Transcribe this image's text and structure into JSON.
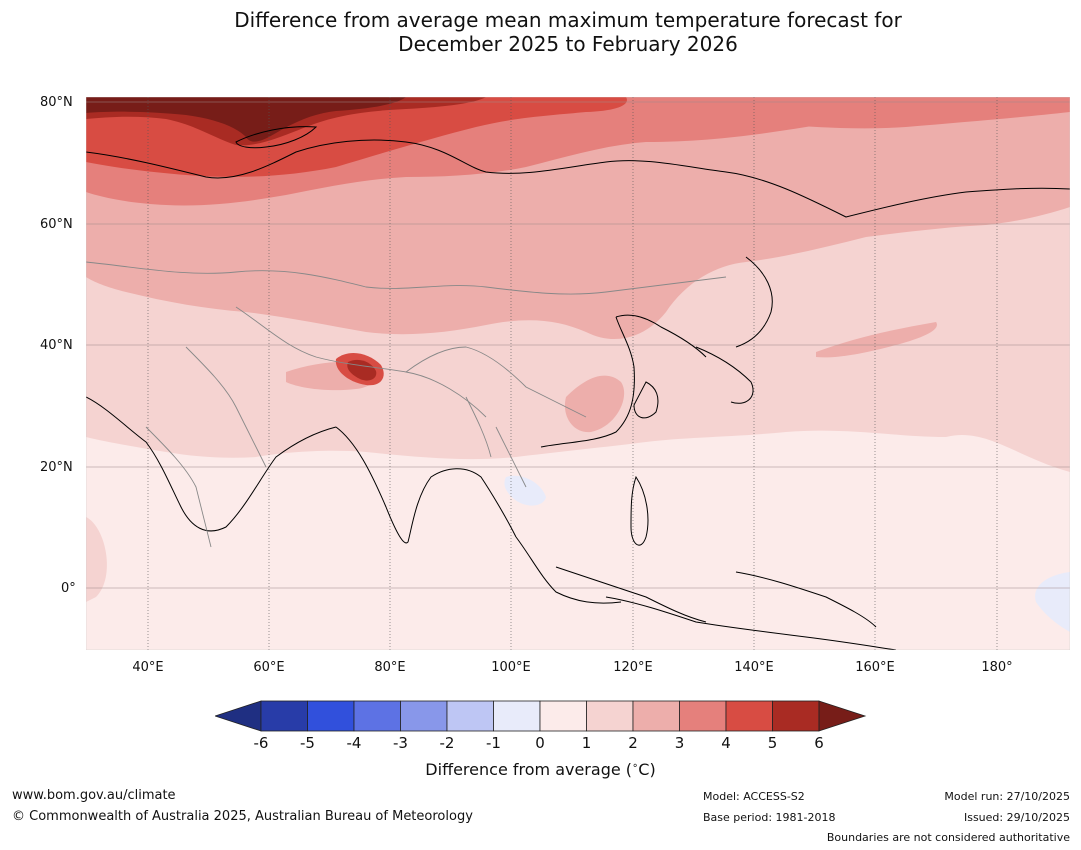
{
  "title": {
    "line1": "Difference from average mean maximum temperature forecast for",
    "line2": "December 2025 to February 2026"
  },
  "map": {
    "region": "Asia",
    "lat_labels": [
      "80°N",
      "60°N",
      "40°N",
      "20°N",
      "0°"
    ],
    "lon_labels": [
      "40°E",
      "60°E",
      "80°E",
      "100°E",
      "120°E",
      "140°E",
      "160°E",
      "180°"
    ]
  },
  "colorbar": {
    "label": "Difference from average (°C)",
    "label_text": "Difference from average ( ",
    "label_unit": "∘",
    "label_end": "C)",
    "ticks": [
      "-6",
      "-5",
      "-4",
      "-3",
      "-2",
      "-1",
      "0",
      "1",
      "2",
      "3",
      "4",
      "5",
      "6"
    ],
    "colors": [
      "#1f2f82",
      "#283ca8",
      "#3150dc",
      "#5d72e4",
      "#8897ea",
      "#bec6f4",
      "#e8ebfa",
      "#fcebea",
      "#f5d3d1",
      "#edaeab",
      "#e5807c",
      "#d84c43",
      "#a92b23",
      "#771d18"
    ]
  },
  "footer": {
    "website": "www.bom.gov.au/climate",
    "copyright": "© Commonwealth of Australia 2025, Australian Bureau of Meteorology",
    "model": "Model: ACCESS-S2",
    "base_period": "Base period: 1981-2018",
    "model_run": "Model run: 27/10/2025",
    "issued": "Issued: 29/10/2025",
    "disclaimer": "Boundaries are not considered authoritative"
  }
}
